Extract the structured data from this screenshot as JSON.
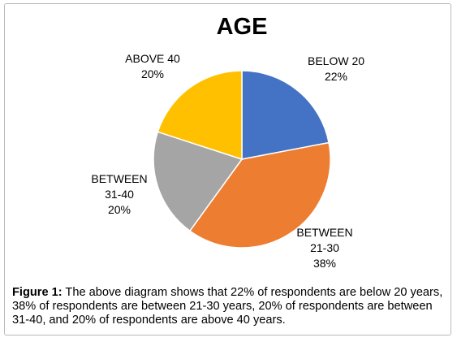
{
  "chart_data": {
    "type": "pie",
    "title": "AGE",
    "slices": [
      {
        "label": [
          "BELOW 20"
        ],
        "value": 22,
        "value_label": "22%",
        "color": "#4472C4"
      },
      {
        "label": [
          "BETWEEN",
          "21-30"
        ],
        "value": 38,
        "value_label": "38%",
        "color": "#ED7D31"
      },
      {
        "label": [
          "BETWEEN",
          "31-40"
        ],
        "value": 20,
        "value_label": "20%",
        "color": "#A5A5A5"
      },
      {
        "label": [
          "ABOVE 40"
        ],
        "value": 20,
        "value_label": "20%",
        "color": "#FFC000"
      }
    ],
    "start_angle": "12 o'clock",
    "direction": "clockwise",
    "slice_border_color": "#ffffff",
    "legend": "none"
  },
  "caption": {
    "label": "Figure 1:",
    "text": " The above diagram shows that 22% of respondents are below 20 years, 38% of respondents are between 21-30 years, 20% of respondents are between 31-40, and 20% of respondents are above 40 years."
  }
}
